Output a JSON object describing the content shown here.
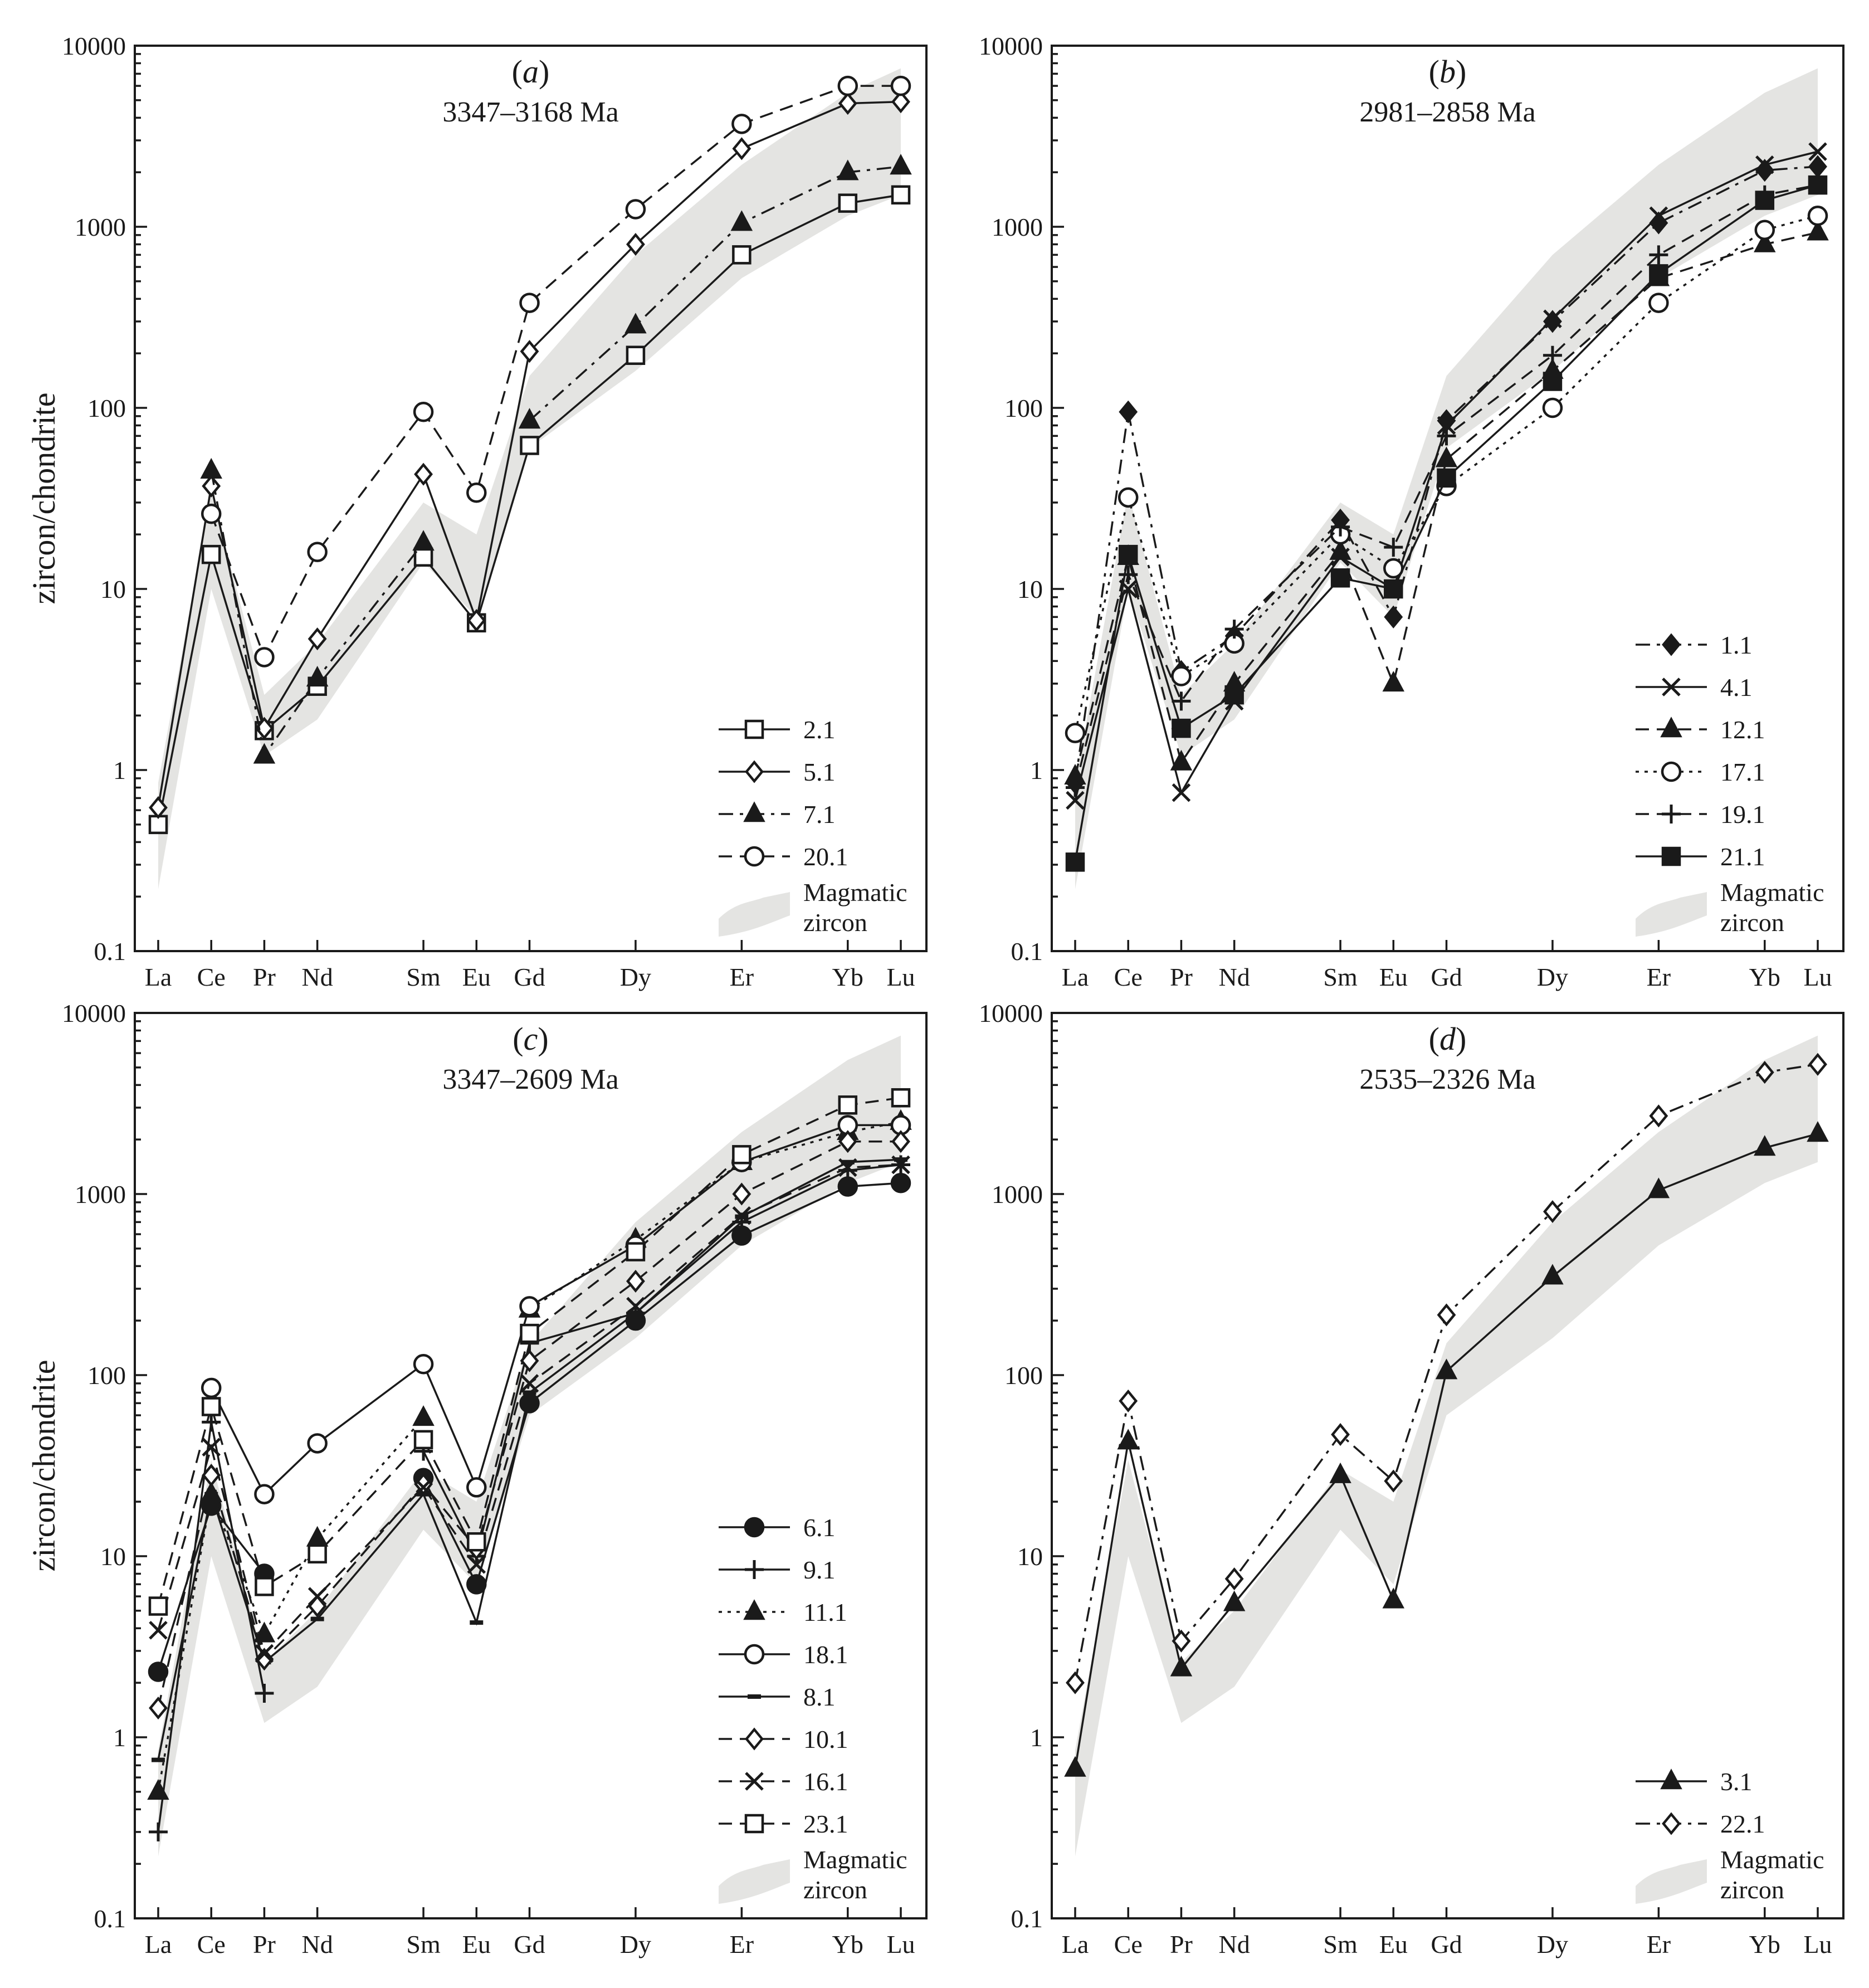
{
  "y_axis_label": "zircon/chondrite",
  "legend_envelope_label": [
    "Magmatic",
    "zircon"
  ],
  "colors": {
    "ink": "#1a1a1a",
    "envelope": "#e4e4e2",
    "open_fill": "#ffffff"
  },
  "chart_data": [
    {
      "type": "line",
      "title": "(a)",
      "panel_letter": "a",
      "subtitle": "3347–3168 Ma",
      "xlabel": "",
      "ylabel": "zircon/chondrite",
      "yscale": "log",
      "ylim": [
        0.1,
        10000
      ],
      "yticks": [
        0.1,
        1,
        10,
        100,
        1000,
        10000
      ],
      "ytick_labels": [
        "0.1",
        "1",
        "10",
        "100",
        "1000",
        "10000"
      ],
      "categories": [
        "La",
        "Ce",
        "Pr",
        "Nd",
        "Sm",
        "Eu",
        "Gd",
        "Dy",
        "Er",
        "Yb",
        "Lu"
      ],
      "envelope": {
        "label": "Magmatic zircon",
        "lower": [
          0.22,
          10,
          1.2,
          1.9,
          14,
          7,
          60,
          160,
          520,
          1150,
          1500
        ],
        "upper": [
          0.85,
          34,
          2.6,
          5,
          30,
          20,
          150,
          700,
          2200,
          5500,
          7500
        ]
      },
      "series": [
        {
          "name": "2.1",
          "marker": "square",
          "fill": "open",
          "dash": "solid",
          "values": [
            0.5,
            15.5,
            1.65,
            2.9,
            15,
            6.5,
            62,
            195,
            700,
            1350,
            1500
          ]
        },
        {
          "name": "5.1",
          "marker": "diamond",
          "fill": "open",
          "dash": "solid",
          "values": [
            0.62,
            37,
            1.7,
            5.3,
            43,
            6.7,
            205,
            800,
            2700,
            4800,
            4900
          ]
        },
        {
          "name": "7.1",
          "marker": "triangle",
          "fill": "filled",
          "dash": "dashdot",
          "values": [
            null,
            45,
            1.2,
            3.2,
            18,
            null,
            85,
            285,
            1050,
            2000,
            2150
          ]
        },
        {
          "name": "20.1",
          "marker": "circle",
          "fill": "open",
          "dash": "dashed",
          "values": [
            null,
            26,
            4.2,
            16,
            95,
            34,
            380,
            1250,
            3700,
            6000,
            6000
          ]
        }
      ]
    },
    {
      "type": "line",
      "title": "(b)",
      "panel_letter": "b",
      "subtitle": "2981–2858 Ma",
      "xlabel": "",
      "ylabel": "",
      "yscale": "log",
      "ylim": [
        0.1,
        10000
      ],
      "yticks": [
        0.1,
        1,
        10,
        100,
        1000,
        10000
      ],
      "ytick_labels": [
        "0.1",
        "1",
        "10",
        "100",
        "1000",
        "10000"
      ],
      "categories": [
        "La",
        "Ce",
        "Pr",
        "Nd",
        "Sm",
        "Eu",
        "Gd",
        "Dy",
        "Er",
        "Yb",
        "Lu"
      ],
      "envelope": {
        "label": "Magmatic zircon",
        "lower": [
          0.22,
          10,
          1.2,
          1.9,
          14,
          7,
          60,
          160,
          520,
          1150,
          1500
        ],
        "upper": [
          0.85,
          34,
          2.6,
          5,
          30,
          20,
          150,
          700,
          2200,
          5500,
          7500
        ]
      },
      "series": [
        {
          "name": "1.1",
          "marker": "diamond",
          "fill": "filled",
          "dash": "dashdot",
          "values": [
            0.85,
            95,
            3.5,
            5.5,
            24,
            7,
            85,
            300,
            1050,
            2050,
            2150
          ]
        },
        {
          "name": "4.1",
          "marker": "x",
          "fill": "none",
          "dash": "solid",
          "values": [
            0.68,
            10,
            0.75,
            2.4,
            15,
            10,
            80,
            310,
            1150,
            2200,
            2600
          ]
        },
        {
          "name": "12.1",
          "marker": "triangle",
          "fill": "filled",
          "dash": "dashed",
          "values": [
            0.92,
            15,
            1.1,
            3,
            16,
            3,
            52,
            160,
            520,
            800,
            930
          ]
        },
        {
          "name": "17.1",
          "marker": "circle",
          "fill": "open",
          "dash": "dotted",
          "values": [
            1.6,
            32,
            3.3,
            5,
            20,
            13,
            37,
            100,
            380,
            960,
            1150
          ]
        },
        {
          "name": "19.1",
          "marker": "plus",
          "fill": "none",
          "dash": "dashed",
          "values": [
            0.8,
            12,
            2.4,
            6,
            22,
            17,
            70,
            195,
            700,
            1500,
            1700
          ]
        },
        {
          "name": "21.1",
          "marker": "square",
          "fill": "filled",
          "dash": "solid",
          "values": [
            0.31,
            15.5,
            1.7,
            2.6,
            11.5,
            10,
            41,
            140,
            550,
            1400,
            1700
          ]
        }
      ]
    },
    {
      "type": "line",
      "title": "(c)",
      "panel_letter": "c",
      "subtitle": "3347–2609 Ma",
      "xlabel": "",
      "ylabel": "zircon/chondrite",
      "yscale": "log",
      "ylim": [
        0.1,
        10000
      ],
      "yticks": [
        0.1,
        1,
        10,
        100,
        1000,
        10000
      ],
      "ytick_labels": [
        "0.1",
        "1",
        "10",
        "100",
        "1000",
        "10000"
      ],
      "categories": [
        "La",
        "Ce",
        "Pr",
        "Nd",
        "Sm",
        "Eu",
        "Gd",
        "Dy",
        "Er",
        "Yb",
        "Lu"
      ],
      "envelope": {
        "label": "Magmatic zircon",
        "lower": [
          0.22,
          10,
          1.2,
          1.9,
          14,
          7,
          60,
          160,
          520,
          1150,
          1500
        ],
        "upper": [
          0.85,
          34,
          2.6,
          5,
          30,
          20,
          150,
          700,
          2200,
          5500,
          7500
        ]
      },
      "series": [
        {
          "name": "6.1",
          "marker": "circle",
          "fill": "filled",
          "dash": "solid",
          "values": [
            2.3,
            19,
            8,
            null,
            27,
            7,
            70,
            200,
            590,
            1100,
            1150
          ]
        },
        {
          "name": "9.1",
          "marker": "plus",
          "fill": "none",
          "dash": "solid",
          "values": [
            0.3,
            55,
            1.75,
            null,
            38,
            10,
            150,
            220,
            700,
            1350,
            1450
          ]
        },
        {
          "name": "11.1",
          "marker": "triangle",
          "fill": "filled",
          "dash": "dotted",
          "values": [
            0.5,
            22,
            3.7,
            12.5,
            58,
            null,
            230,
            560,
            1500,
            2200,
            2500
          ]
        },
        {
          "name": "18.1",
          "marker": "circle",
          "fill": "open",
          "dash": "solid",
          "values": [
            null,
            85,
            22,
            42,
            115,
            24,
            240,
            520,
            1500,
            2400,
            2400
          ]
        },
        {
          "name": "8.1",
          "marker": "dash",
          "fill": "none",
          "dash": "solid",
          "values": [
            0.75,
            22,
            2.6,
            4.5,
            22,
            4.3,
            80,
            220,
            750,
            1500,
            1550
          ]
        },
        {
          "name": "10.1",
          "marker": "diamond",
          "fill": "open",
          "dash": "dashed",
          "values": [
            1.45,
            28,
            2.7,
            5.3,
            25,
            11,
            120,
            330,
            1000,
            1950,
            1950
          ]
        },
        {
          "name": "16.1",
          "marker": "x",
          "fill": "none",
          "dash": "dashed",
          "values": [
            3.9,
            40,
            2.9,
            6,
            24,
            9,
            90,
            240,
            760,
            1400,
            1450
          ]
        },
        {
          "name": "23.1",
          "marker": "square",
          "fill": "open",
          "dash": "dashed",
          "values": [
            5.3,
            67,
            6.8,
            10.3,
            44,
            12,
            170,
            480,
            1650,
            3100,
            3400
          ]
        }
      ]
    },
    {
      "type": "line",
      "title": "(d)",
      "panel_letter": "d",
      "subtitle": "2535–2326 Ma",
      "xlabel": "",
      "ylabel": "",
      "yscale": "log",
      "ylim": [
        0.1,
        10000
      ],
      "yticks": [
        0.1,
        1,
        10,
        100,
        1000,
        10000
      ],
      "ytick_labels": [
        "0.1",
        "1",
        "10",
        "100",
        "1000",
        "10000"
      ],
      "categories": [
        "La",
        "Ce",
        "Pr",
        "Nd",
        "Sm",
        "Eu",
        "Gd",
        "Dy",
        "Er",
        "Yb",
        "Lu"
      ],
      "envelope": {
        "label": "Magmatic zircon",
        "lower": [
          0.22,
          10,
          1.2,
          1.9,
          14,
          7,
          60,
          160,
          520,
          1150,
          1500
        ],
        "upper": [
          0.85,
          34,
          2.6,
          5,
          30,
          20,
          150,
          700,
          2200,
          5500,
          7500
        ]
      },
      "series": [
        {
          "name": "3.1",
          "marker": "triangle",
          "fill": "filled",
          "dash": "solid",
          "values": [
            0.67,
            43,
            2.4,
            5.5,
            28,
            5.7,
            105,
            350,
            1050,
            1800,
            2150
          ]
        },
        {
          "name": "22.1",
          "marker": "diamond",
          "fill": "open",
          "dash": "dashdot",
          "values": [
            2,
            72,
            3.4,
            7.5,
            47,
            26,
            215,
            800,
            2700,
            4700,
            5200
          ]
        }
      ]
    }
  ]
}
